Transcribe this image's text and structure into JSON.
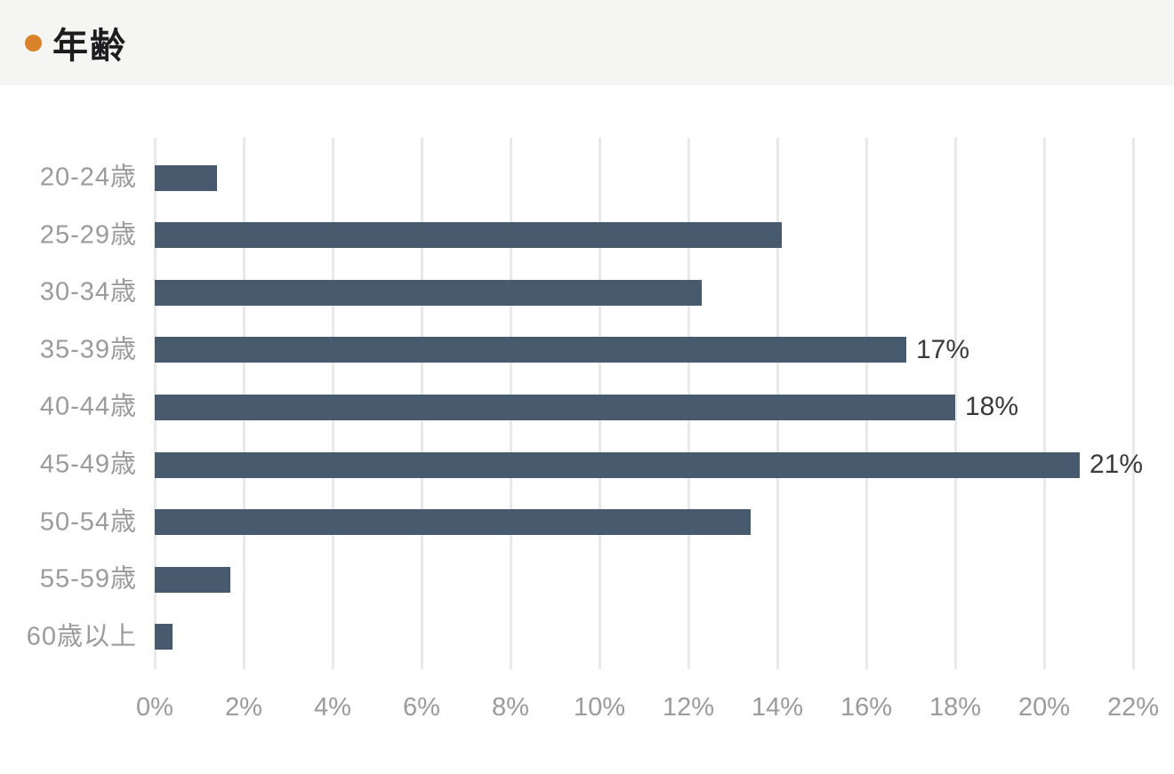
{
  "header": {
    "title": "年齢",
    "bullet_color": "#d9822b",
    "background_color": "#f5f5f4"
  },
  "chart_data": {
    "type": "bar",
    "orientation": "horizontal",
    "title": "年齢",
    "categories": [
      "20-24歳",
      "25-29歳",
      "30-34歳",
      "35-39歳",
      "40-44歳",
      "45-49歳",
      "50-54歳",
      "55-59歳",
      "60歳以上"
    ],
    "values": [
      1.4,
      14.1,
      12.3,
      16.9,
      18.0,
      20.8,
      13.4,
      1.7,
      0.4
    ],
    "data_labels": [
      "",
      "",
      "",
      "17%",
      "18%",
      "21%",
      "",
      "",
      ""
    ],
    "x_tick_labels": [
      "0%",
      "2%",
      "4%",
      "6%",
      "8%",
      "10%",
      "12%",
      "14%",
      "16%",
      "18%",
      "20%",
      "22%"
    ],
    "xlim": [
      0,
      22
    ],
    "x_tick_step": 2,
    "grid": "vertical",
    "legend": "none",
    "bar_color": "#475a6e",
    "grid_color": "#e8e9ea",
    "axis_label_color": "#9b9b9b",
    "data_label_color": "#3a3a3a"
  }
}
